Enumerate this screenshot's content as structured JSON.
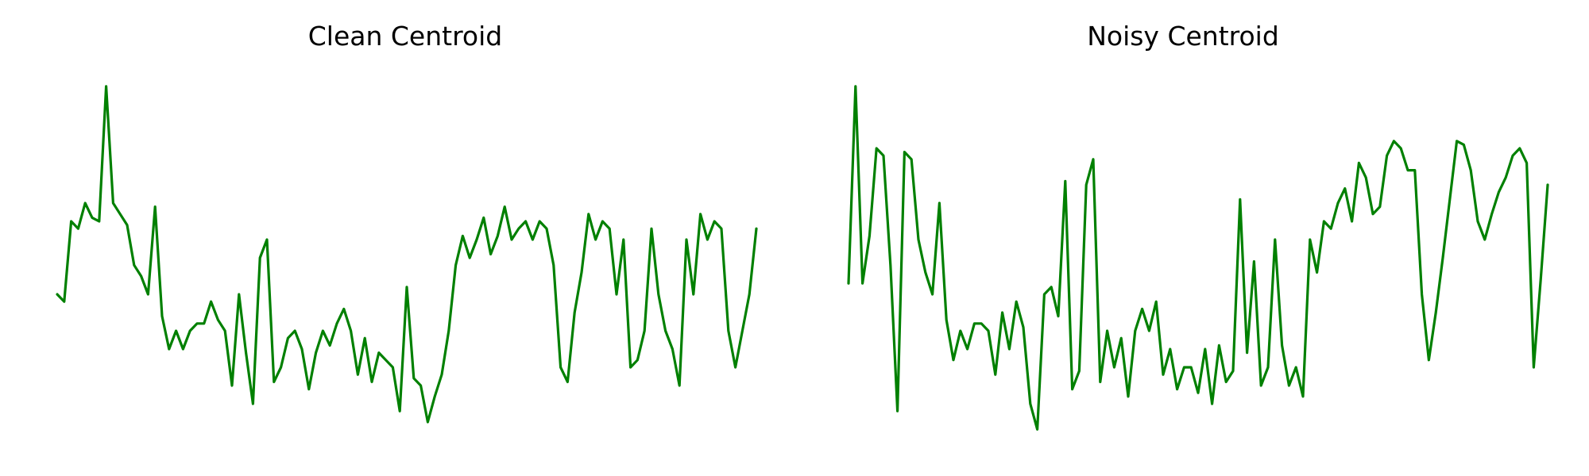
{
  "chart_data": [
    {
      "type": "line",
      "title": "Clean Centroid",
      "xlabel": "",
      "ylabel": "",
      "axes_visible": false,
      "grid": false,
      "line_color": "#008000",
      "xlim": [
        0,
        100
      ],
      "ylim": [
        0,
        1
      ],
      "series": [
        {
          "x": [
            0,
            1,
            2,
            3,
            4,
            5,
            6,
            7,
            8,
            9,
            10,
            11,
            12,
            13,
            14,
            15,
            16,
            17,
            18,
            19,
            20,
            21,
            22,
            23,
            24,
            25,
            26,
            27,
            28,
            29,
            30,
            31,
            32,
            33,
            34,
            35,
            36,
            37,
            38,
            39,
            40,
            41,
            42,
            43,
            44,
            45,
            46,
            47,
            48,
            49,
            50,
            51,
            52,
            53,
            54,
            55,
            56,
            57,
            58,
            59,
            60,
            61,
            62,
            63,
            64,
            65,
            66,
            67,
            68,
            69,
            70,
            71,
            72,
            73,
            74,
            75,
            76,
            77,
            78,
            79,
            80,
            81,
            82,
            83,
            84,
            85,
            86,
            87,
            88,
            89,
            90,
            91,
            92,
            93,
            94,
            95,
            96,
            97,
            98,
            99,
            100
          ],
          "y": [
            0.4,
            0.38,
            0.6,
            0.58,
            0.65,
            0.61,
            0.6,
            0.97,
            0.65,
            0.62,
            0.59,
            0.48,
            0.45,
            0.4,
            0.64,
            0.34,
            0.25,
            0.3,
            0.25,
            0.3,
            0.32,
            0.32,
            0.38,
            0.33,
            0.3,
            0.15,
            0.4,
            0.24,
            0.1,
            0.5,
            0.55,
            0.16,
            0.2,
            0.28,
            0.3,
            0.25,
            0.14,
            0.24,
            0.3,
            0.26,
            0.32,
            0.36,
            0.3,
            0.18,
            0.28,
            0.16,
            0.24,
            0.22,
            0.2,
            0.08,
            0.42,
            0.17,
            0.15,
            0.05,
            0.12,
            0.18,
            0.3,
            0.48,
            0.56,
            0.5,
            0.55,
            0.61,
            0.51,
            0.56,
            0.64,
            0.55,
            0.58,
            0.6,
            0.55,
            0.6,
            0.58,
            0.48,
            0.2,
            0.16,
            0.35,
            0.46,
            0.62,
            0.55,
            0.6,
            0.58,
            0.4,
            0.55,
            0.2,
            0.22,
            0.3,
            0.58,
            0.4,
            0.3,
            0.25,
            0.15,
            0.55,
            0.4,
            0.62,
            0.55,
            0.6,
            0.58,
            0.3,
            0.2,
            0.3,
            0.4,
            0.58
          ]
        }
      ]
    },
    {
      "type": "line",
      "title": "Noisy Centroid",
      "xlabel": "",
      "ylabel": "",
      "axes_visible": false,
      "grid": false,
      "line_color": "#008000",
      "xlim": [
        0,
        100
      ],
      "ylim": [
        0,
        1
      ],
      "series": [
        {
          "x": [
            0,
            1,
            2,
            3,
            4,
            5,
            6,
            7,
            8,
            9,
            10,
            11,
            12,
            13,
            14,
            15,
            16,
            17,
            18,
            19,
            20,
            21,
            22,
            23,
            24,
            25,
            26,
            27,
            28,
            29,
            30,
            31,
            32,
            33,
            34,
            35,
            36,
            37,
            38,
            39,
            40,
            41,
            42,
            43,
            44,
            45,
            46,
            47,
            48,
            49,
            50,
            51,
            52,
            53,
            54,
            55,
            56,
            57,
            58,
            59,
            60,
            61,
            62,
            63,
            64,
            65,
            66,
            67,
            68,
            69,
            70,
            71,
            72,
            73,
            74,
            75,
            76,
            77,
            78,
            79,
            80,
            81,
            82,
            83,
            84,
            85,
            86,
            87,
            88,
            89,
            90,
            91,
            92,
            93,
            94,
            95,
            96,
            97,
            98,
            99,
            100
          ],
          "y": [
            0.43,
            0.97,
            0.43,
            0.56,
            0.8,
            0.78,
            0.48,
            0.08,
            0.79,
            0.77,
            0.55,
            0.46,
            0.4,
            0.65,
            0.33,
            0.22,
            0.3,
            0.25,
            0.32,
            0.32,
            0.3,
            0.18,
            0.35,
            0.25,
            0.38,
            0.31,
            0.1,
            0.03,
            0.4,
            0.42,
            0.34,
            0.71,
            0.14,
            0.19,
            0.7,
            0.77,
            0.16,
            0.3,
            0.2,
            0.28,
            0.12,
            0.3,
            0.36,
            0.3,
            0.38,
            0.18,
            0.25,
            0.14,
            0.2,
            0.2,
            0.13,
            0.25,
            0.1,
            0.26,
            0.16,
            0.19,
            0.66,
            0.24,
            0.49,
            0.15,
            0.2,
            0.55,
            0.26,
            0.15,
            0.2,
            0.12,
            0.55,
            0.46,
            0.6,
            0.58,
            0.65,
            0.69,
            0.6,
            0.76,
            0.72,
            0.62,
            0.64,
            0.78,
            0.82,
            0.8,
            0.74,
            0.74,
            0.4,
            0.22,
            0.35,
            0.5,
            0.66,
            0.82,
            0.81,
            0.74,
            0.6,
            0.55,
            0.62,
            0.68,
            0.72,
            0.78,
            0.8,
            0.76,
            0.2,
            0.44,
            0.7
          ]
        }
      ]
    }
  ]
}
